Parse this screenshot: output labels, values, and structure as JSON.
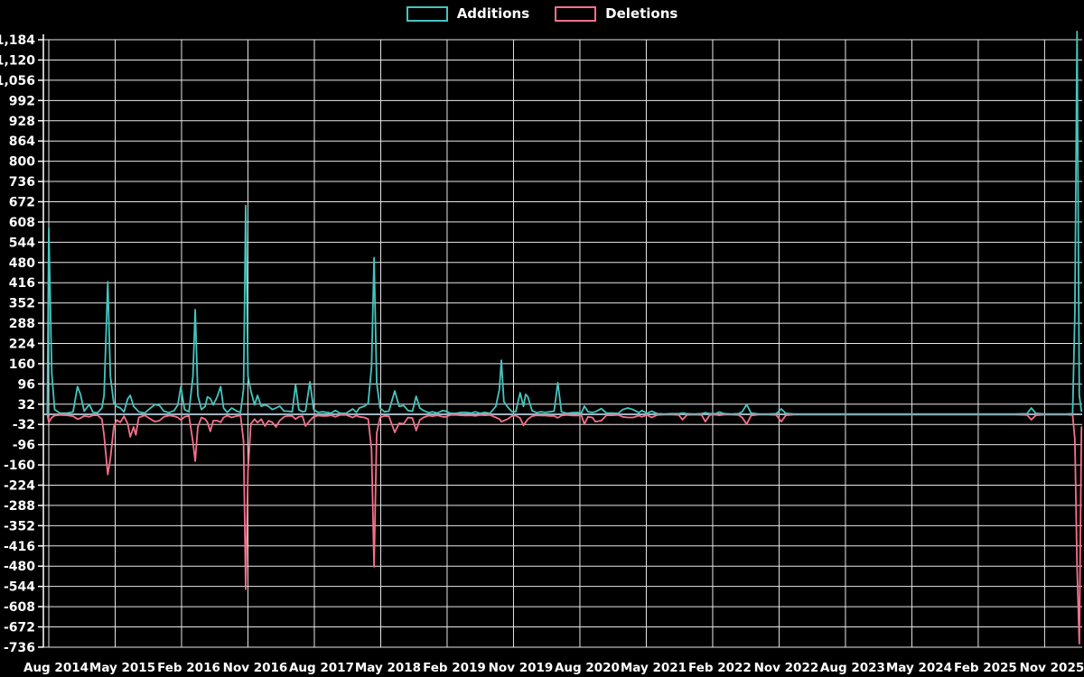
{
  "legend": {
    "additions_label": "Additions",
    "deletions_label": "Deletions"
  },
  "colors": {
    "background": "#000000",
    "additions": "#45c5bf",
    "deletions": "#f6708b",
    "zero_baseline": "#a0b4c0",
    "grid": "#e8e8e8",
    "axis": "#ffffff",
    "text": "#ffffff"
  },
  "chart_data": {
    "type": "line",
    "title": "",
    "xlabel": "",
    "ylabel": "",
    "grid": true,
    "legend_position": "top",
    "ylim": [
      -736,
      1184
    ],
    "x_unit": "months since Aug 2014",
    "series_names": [
      "Additions",
      "Deletions"
    ],
    "y_ticks": [
      {
        "v": 1184,
        "label": "1,184"
      },
      {
        "v": 1120,
        "label": "1,120"
      },
      {
        "v": 1056,
        "label": "1,056"
      },
      {
        "v": 992,
        "label": "992"
      },
      {
        "v": 928,
        "label": "928"
      },
      {
        "v": 864,
        "label": "864"
      },
      {
        "v": 800,
        "label": "800"
      },
      {
        "v": 736,
        "label": "736"
      },
      {
        "v": 672,
        "label": "672"
      },
      {
        "v": 608,
        "label": "608"
      },
      {
        "v": 544,
        "label": "544"
      },
      {
        "v": 480,
        "label": "480"
      },
      {
        "v": 416,
        "label": "416"
      },
      {
        "v": 352,
        "label": "352"
      },
      {
        "v": 288,
        "label": "288"
      },
      {
        "v": 224,
        "label": "224"
      },
      {
        "v": 160,
        "label": "160"
      },
      {
        "v": 96,
        "label": "96"
      },
      {
        "v": 32,
        "label": "32"
      },
      {
        "v": -32,
        "label": "-32"
      },
      {
        "v": -96,
        "label": "-96"
      },
      {
        "v": -160,
        "label": "-160"
      },
      {
        "v": -224,
        "label": "-224"
      },
      {
        "v": -288,
        "label": "-288"
      },
      {
        "v": -352,
        "label": "-352"
      },
      {
        "v": -416,
        "label": "-416"
      },
      {
        "v": -480,
        "label": "-480"
      },
      {
        "v": -544,
        "label": "-544"
      },
      {
        "v": -608,
        "label": "-608"
      },
      {
        "v": -672,
        "label": "-672"
      },
      {
        "v": -736,
        "label": "-736"
      }
    ],
    "x_ticks": [
      {
        "m": 0,
        "label": "Aug 2014"
      },
      {
        "m": 9,
        "label": "May 2015"
      },
      {
        "m": 18,
        "label": "Feb 2016"
      },
      {
        "m": 27,
        "label": "Nov 2016"
      },
      {
        "m": 36,
        "label": "Aug 2017"
      },
      {
        "m": 45,
        "label": "May 2018"
      },
      {
        "m": 54,
        "label": "Feb 2019"
      },
      {
        "m": 63,
        "label": "Nov 2019"
      },
      {
        "m": 72,
        "label": "Aug 2020"
      },
      {
        "m": 81,
        "label": "May 2021"
      },
      {
        "m": 90,
        "label": "Feb 2022"
      },
      {
        "m": 99,
        "label": "Nov 2022"
      },
      {
        "m": 108,
        "label": "Aug 2023"
      },
      {
        "m": 117,
        "label": "May 2024"
      },
      {
        "m": 126,
        "label": "Feb 2025"
      },
      {
        "m": 135,
        "label": "Nov 2025"
      }
    ],
    "points": [
      [
        -0.2,
        0,
        0
      ],
      [
        0.0,
        590,
        -25
      ],
      [
        0.4,
        130,
        -10
      ],
      [
        0.8,
        15,
        -4
      ],
      [
        1.5,
        4,
        -2
      ],
      [
        2.5,
        4,
        -3
      ],
      [
        3.3,
        8,
        -6
      ],
      [
        3.9,
        88,
        -15
      ],
      [
        4.3,
        63,
        -12
      ],
      [
        4.8,
        10,
        -5
      ],
      [
        5.5,
        31,
        -8
      ],
      [
        6.0,
        6,
        -3
      ],
      [
        6.6,
        5,
        -3
      ],
      [
        7.2,
        20,
        -15
      ],
      [
        7.5,
        60,
        -66
      ],
      [
        8.0,
        419,
        -190
      ],
      [
        8.35,
        120,
        -140
      ],
      [
        8.8,
        35,
        -40
      ],
      [
        9.2,
        25,
        -18
      ],
      [
        9.7,
        20,
        -25
      ],
      [
        10.2,
        8,
        -6
      ],
      [
        10.7,
        49,
        -30
      ],
      [
        11.05,
        60,
        -71
      ],
      [
        11.5,
        25,
        -40
      ],
      [
        11.8,
        18,
        -65
      ],
      [
        12.2,
        8,
        -10
      ],
      [
        13.0,
        4,
        -3
      ],
      [
        13.8,
        20,
        -15
      ],
      [
        14.4,
        31,
        -23
      ],
      [
        15.0,
        28,
        -20
      ],
      [
        15.6,
        10,
        -8
      ],
      [
        16.3,
        5,
        -4
      ],
      [
        17.0,
        12,
        -6
      ],
      [
        17.5,
        30,
        -10
      ],
      [
        17.9,
        88,
        -18
      ],
      [
        18.4,
        15,
        -8
      ],
      [
        19.0,
        8,
        -5
      ],
      [
        19.55,
        120,
        -88
      ],
      [
        19.85,
        331,
        -148
      ],
      [
        20.2,
        60,
        -40
      ],
      [
        20.7,
        15,
        -10
      ],
      [
        21.2,
        25,
        -15
      ],
      [
        21.5,
        55,
        -25
      ],
      [
        21.9,
        50,
        -54
      ],
      [
        22.3,
        30,
        -20
      ],
      [
        22.8,
        54,
        -20
      ],
      [
        23.3,
        88,
        -25
      ],
      [
        23.7,
        20,
        -10
      ],
      [
        24.2,
        6,
        -4
      ],
      [
        24.8,
        20,
        -10
      ],
      [
        25.5,
        10,
        -5
      ],
      [
        26.0,
        6,
        -4
      ],
      [
        26.4,
        80,
        -85
      ],
      [
        26.7,
        660,
        -553
      ],
      [
        27.0,
        120,
        -180
      ],
      [
        27.4,
        74,
        -30
      ],
      [
        27.9,
        30,
        -15
      ],
      [
        28.3,
        60,
        -26
      ],
      [
        28.8,
        25,
        -15
      ],
      [
        29.3,
        30,
        -37
      ],
      [
        29.8,
        25,
        -20
      ],
      [
        30.3,
        15,
        -25
      ],
      [
        30.8,
        20,
        -40
      ],
      [
        31.3,
        26,
        -20
      ],
      [
        31.9,
        10,
        -8
      ],
      [
        32.4,
        10,
        -5
      ],
      [
        33.0,
        8,
        -5
      ],
      [
        33.45,
        94,
        -15
      ],
      [
        33.9,
        15,
        -8
      ],
      [
        34.4,
        8,
        -6
      ],
      [
        34.8,
        10,
        -37
      ],
      [
        35.4,
        103,
        -20
      ],
      [
        35.9,
        15,
        -8
      ],
      [
        36.5,
        6,
        -4
      ],
      [
        37.1,
        8,
        -5
      ],
      [
        37.7,
        6,
        -5
      ],
      [
        38.3,
        4,
        -3
      ],
      [
        38.85,
        12,
        -8
      ],
      [
        39.5,
        3,
        -2
      ],
      [
        40.3,
        3,
        -2
      ],
      [
        41.2,
        17,
        -10
      ],
      [
        41.7,
        6,
        -4
      ],
      [
        42.1,
        20,
        -8
      ],
      [
        42.8,
        26,
        -10
      ],
      [
        43.3,
        35,
        -15
      ],
      [
        43.75,
        150,
        -111
      ],
      [
        44.1,
        495,
        -482
      ],
      [
        44.45,
        100,
        -60
      ],
      [
        44.9,
        20,
        -10
      ],
      [
        45.5,
        8,
        -5
      ],
      [
        46.1,
        10,
        -6
      ],
      [
        46.9,
        74,
        -57
      ],
      [
        47.5,
        25,
        -28
      ],
      [
        48.1,
        28,
        -30
      ],
      [
        48.7,
        12,
        -10
      ],
      [
        49.3,
        10,
        -12
      ],
      [
        49.8,
        57,
        -51
      ],
      [
        50.3,
        20,
        -18
      ],
      [
        50.8,
        12,
        -10
      ],
      [
        51.5,
        5,
        -4
      ],
      [
        52.0,
        8,
        -6
      ],
      [
        52.7,
        4,
        -3
      ],
      [
        53.4,
        12,
        -8
      ],
      [
        53.8,
        10,
        -8
      ],
      [
        54.5,
        3,
        -2
      ],
      [
        55.2,
        3,
        -2
      ],
      [
        55.9,
        6,
        -3
      ],
      [
        56.6,
        6,
        -4
      ],
      [
        57.3,
        4,
        -3
      ],
      [
        57.8,
        8,
        -5
      ],
      [
        58.5,
        3,
        -2
      ],
      [
        59.1,
        6,
        -3
      ],
      [
        59.8,
        3,
        -2
      ],
      [
        60.6,
        25,
        -10
      ],
      [
        61.1,
        80,
        -15
      ],
      [
        61.35,
        171,
        -23
      ],
      [
        61.7,
        40,
        -20
      ],
      [
        62.2,
        23,
        -15
      ],
      [
        62.8,
        8,
        -5
      ],
      [
        63.3,
        8,
        -4
      ],
      [
        63.9,
        68,
        -12
      ],
      [
        64.35,
        25,
        -35
      ],
      [
        64.65,
        63,
        -25
      ],
      [
        64.95,
        55,
        -15
      ],
      [
        65.5,
        12,
        -6
      ],
      [
        66.1,
        5,
        -3
      ],
      [
        66.7,
        8,
        -4
      ],
      [
        67.3,
        6,
        -4
      ],
      [
        67.9,
        8,
        -5
      ],
      [
        68.5,
        10,
        -5
      ],
      [
        69.0,
        100,
        -11
      ],
      [
        69.5,
        8,
        -4
      ],
      [
        70.2,
        3,
        -2
      ],
      [
        71.0,
        5,
        -4
      ],
      [
        71.7,
        6,
        -4
      ],
      [
        72.2,
        4,
        -3
      ],
      [
        72.6,
        26,
        -31
      ],
      [
        73.1,
        8,
        -8
      ],
      [
        73.7,
        6,
        -10
      ],
      [
        74.1,
        8,
        -23
      ],
      [
        74.9,
        18,
        -20
      ],
      [
        75.6,
        4,
        -3
      ],
      [
        76.4,
        4,
        -3
      ],
      [
        77.2,
        3,
        -2
      ],
      [
        77.8,
        15,
        -8
      ],
      [
        78.5,
        20,
        -10
      ],
      [
        79.2,
        15,
        -10
      ],
      [
        80.0,
        5,
        -4
      ],
      [
        80.4,
        12,
        -8
      ],
      [
        81.1,
        3,
        -2
      ],
      [
        81.7,
        10,
        -10
      ],
      [
        82.5,
        2,
        -2
      ],
      [
        83.5,
        1,
        -1
      ],
      [
        84.5,
        2,
        -1
      ],
      [
        85.4,
        2,
        -2
      ],
      [
        85.9,
        4,
        -17
      ],
      [
        86.5,
        2,
        -2
      ],
      [
        87.5,
        1,
        -1
      ],
      [
        88.5,
        2,
        -2
      ],
      [
        89.0,
        5,
        -23
      ],
      [
        89.6,
        2,
        -2
      ],
      [
        90.4,
        2,
        -1
      ],
      [
        90.9,
        7,
        -3
      ],
      [
        91.6,
        2,
        -1
      ],
      [
        92.5,
        1,
        -1
      ],
      [
        93.5,
        2,
        -2
      ],
      [
        94.0,
        8,
        -10
      ],
      [
        94.6,
        31,
        -31
      ],
      [
        95.2,
        4,
        -4
      ],
      [
        96.2,
        1,
        -1
      ],
      [
        97.5,
        1,
        -1
      ],
      [
        98.6,
        2,
        -2
      ],
      [
        99.3,
        17,
        -23
      ],
      [
        99.9,
        3,
        -3
      ],
      [
        101,
        1,
        -1
      ],
      [
        103,
        1,
        -1
      ],
      [
        105,
        1,
        -1
      ],
      [
        107,
        1,
        -1
      ],
      [
        109,
        1,
        -1
      ],
      [
        111,
        1,
        -1
      ],
      [
        113,
        1,
        -1
      ],
      [
        115,
        1,
        -1
      ],
      [
        117,
        1,
        -1
      ],
      [
        119,
        1,
        -1
      ],
      [
        121,
        1,
        -1
      ],
      [
        123,
        1,
        -1
      ],
      [
        125,
        1,
        -1
      ],
      [
        127,
        1,
        -1
      ],
      [
        129,
        1,
        -1
      ],
      [
        131,
        1,
        -1
      ],
      [
        132.6,
        2,
        -2
      ],
      [
        133.2,
        20,
        -17
      ],
      [
        133.8,
        3,
        -3
      ],
      [
        135,
        1,
        -1
      ],
      [
        136.5,
        1,
        -1
      ],
      [
        138,
        1,
        -1
      ],
      [
        138.8,
        2,
        -2
      ],
      [
        139.1,
        320,
        -80
      ],
      [
        139.4,
        1210,
        -480
      ],
      [
        139.7,
        60,
        -725
      ],
      [
        140.0,
        10,
        -40
      ]
    ]
  }
}
